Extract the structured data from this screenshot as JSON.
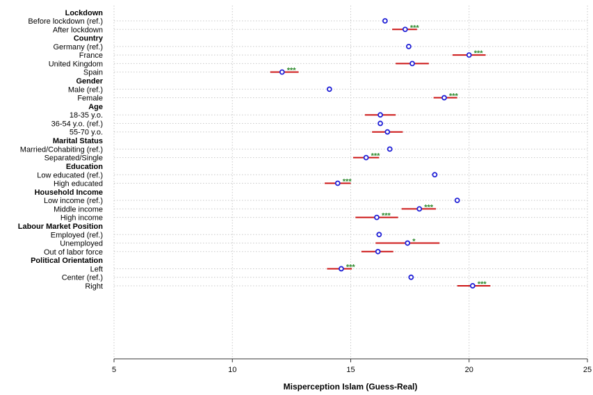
{
  "chart_data": {
    "type": "scatter",
    "title": "",
    "xlabel": "Misperception Islam (Guess-Real)",
    "ylabel": "",
    "xlim": [
      5,
      25
    ],
    "xticks": [
      5,
      10,
      15,
      20,
      25
    ],
    "grid": "dotted",
    "colors": {
      "point": "#1f1fd6",
      "ci": "#cc1414",
      "stars": "#2e8b2e"
    },
    "groups": [
      {
        "name": "Lockdown",
        "rows": [
          {
            "label": "Before lockdown (ref.)",
            "value": 16.45
          },
          {
            "label": "After lockdown",
            "value": 17.3,
            "lo": 16.75,
            "hi": 17.8,
            "stars": "***"
          }
        ]
      },
      {
        "name": "Country",
        "rows": [
          {
            "label": "Germany (ref.)",
            "value": 17.45
          },
          {
            "label": "France",
            "value": 20.0,
            "lo": 19.3,
            "hi": 20.7,
            "stars": "***"
          },
          {
            "label": "United Kingdom",
            "value": 17.6,
            "lo": 16.9,
            "hi": 18.3
          },
          {
            "label": "Spain",
            "value": 12.1,
            "lo": 11.6,
            "hi": 12.8,
            "stars": "***"
          }
        ]
      },
      {
        "name": "Gender",
        "rows": [
          {
            "label": "Male (ref.)",
            "value": 14.1
          },
          {
            "label": "Female",
            "value": 18.95,
            "lo": 18.5,
            "hi": 19.5,
            "stars": "***"
          }
        ]
      },
      {
        "name": "Age",
        "rows": [
          {
            "label": "18-35 y.o.",
            "value": 16.25,
            "lo": 15.6,
            "hi": 16.9
          },
          {
            "label": "36-54 y.o. (ref.)",
            "value": 16.25
          },
          {
            "label": "55-70 y.o.",
            "value": 16.55,
            "lo": 15.9,
            "hi": 17.2
          }
        ]
      },
      {
        "name": "Marital Status",
        "rows": [
          {
            "label": "Married/Cohabiting (ref.)",
            "value": 16.65
          },
          {
            "label": "Separated/Single",
            "value": 15.65,
            "lo": 15.1,
            "hi": 16.2,
            "stars": "***"
          }
        ]
      },
      {
        "name": "Education",
        "rows": [
          {
            "label": "Low educated (ref.)",
            "value": 18.55
          },
          {
            "label": "High educated",
            "value": 14.45,
            "lo": 13.9,
            "hi": 15.0,
            "stars": "***"
          }
        ]
      },
      {
        "name": "Household Income",
        "rows": [
          {
            "label": "Low income (ref.)",
            "value": 19.5
          },
          {
            "label": "Middle income",
            "value": 17.9,
            "lo": 17.15,
            "hi": 18.6,
            "stars": "***"
          },
          {
            "label": "High income",
            "value": 16.1,
            "lo": 15.2,
            "hi": 17.0,
            "stars": "***"
          }
        ]
      },
      {
        "name": "Labour Market Position",
        "rows": [
          {
            "label": "Employed (ref.)",
            "value": 16.2
          },
          {
            "label": "Unemployed",
            "value": 17.4,
            "lo": 16.05,
            "hi": 18.75,
            "stars": "*"
          },
          {
            "label": "Out of labor force",
            "value": 16.15,
            "lo": 15.45,
            "hi": 16.8
          }
        ]
      },
      {
        "name": "Political Orientation",
        "rows": [
          {
            "label": "Left",
            "value": 14.6,
            "lo": 14.0,
            "hi": 15.05,
            "stars": "***"
          },
          {
            "label": "Center (ref.)",
            "value": 17.55
          },
          {
            "label": "Right",
            "value": 20.15,
            "lo": 19.5,
            "hi": 20.9,
            "stars": "***"
          }
        ]
      }
    ]
  }
}
